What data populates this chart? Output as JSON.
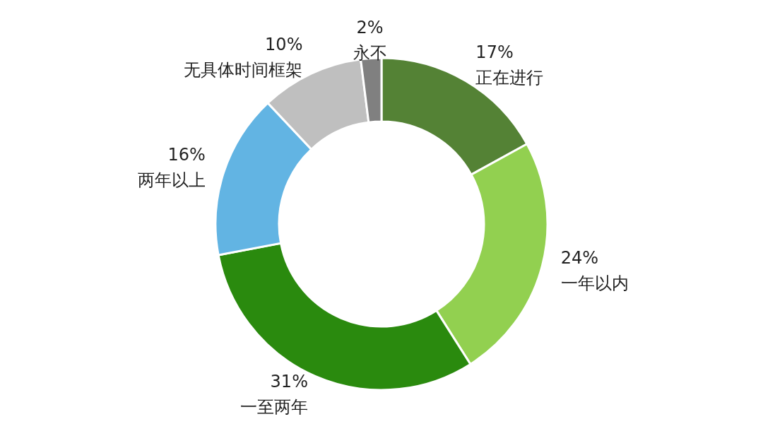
{
  "chart_data": {
    "type": "donut",
    "categories": [
      "正在进行",
      "一年以内",
      "一至两年",
      "两年以上",
      "无具体时间框架",
      "永不"
    ],
    "values": [
      17,
      24,
      31,
      16,
      10,
      2
    ],
    "colors": [
      "#548235",
      "#92d050",
      "#2a8a0e",
      "#62b4e3",
      "#bfbfbf",
      "#808080"
    ],
    "value_labels": [
      "17%",
      "24%",
      "31%",
      "16%",
      "10%",
      "2%"
    ],
    "legend": false
  }
}
